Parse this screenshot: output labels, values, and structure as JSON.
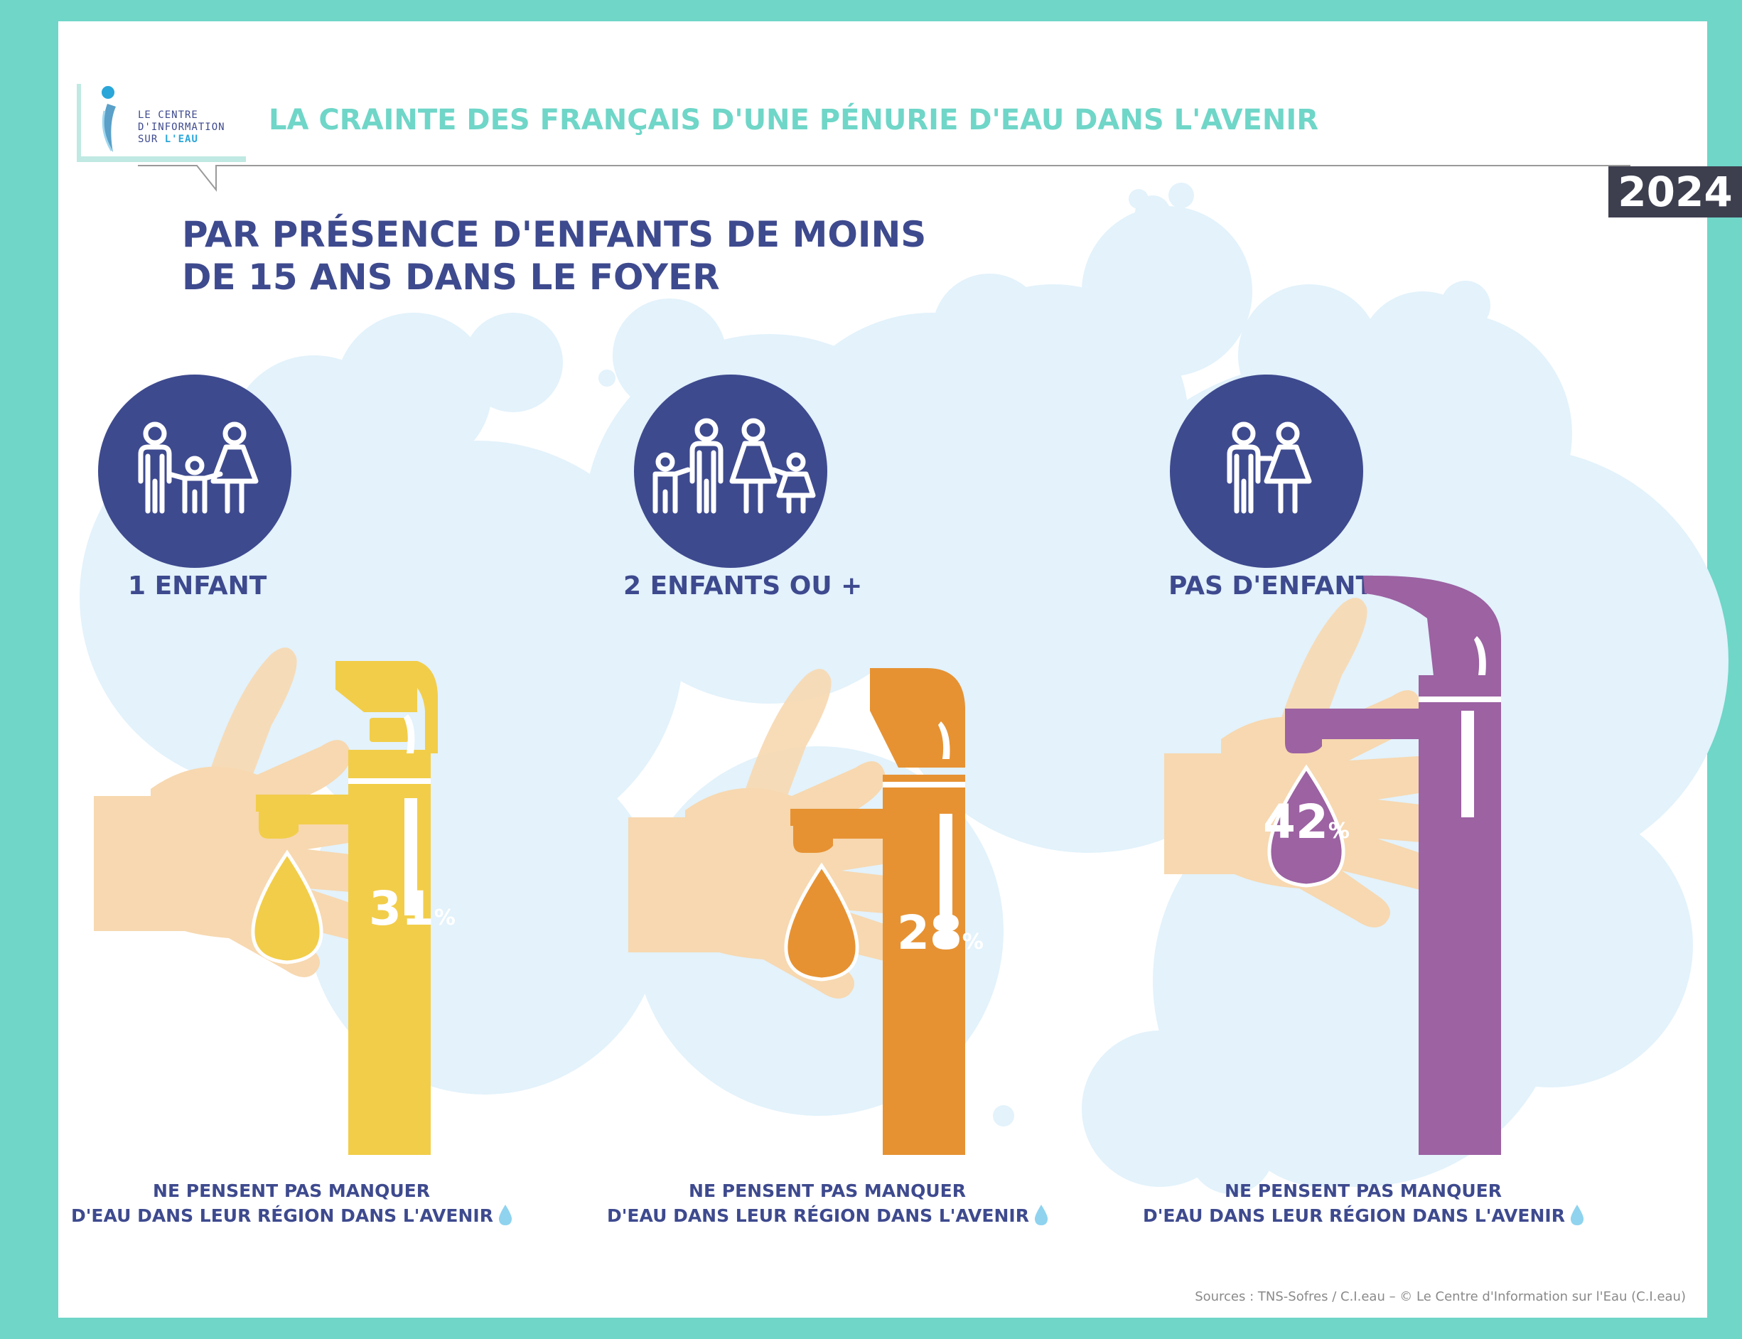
{
  "header": {
    "logo_lines": [
      "LE CENTRE",
      "D'INFORMATION",
      "SUR"
    ],
    "logo_accent": "L'EAU",
    "title": "LA CRAINTE DES FRANÇAIS D'UNE PÉNURIE D'EAU DANS L'AVENIR",
    "year": "2024"
  },
  "subtitle": {
    "line1": "PAR PRÉSENCE D'ENFANTS DE MOINS",
    "line2": "DE 15 ANS DANS LE FOYER"
  },
  "groups": [
    {
      "label": "1 ENFANT",
      "icon": "family-one-child-icon",
      "value": "31",
      "unit": "%",
      "color": "#f2cd49"
    },
    {
      "label": "2 ENFANTS OU +",
      "icon": "family-two-children-icon",
      "value": "28",
      "unit": "%",
      "color": "#e69233"
    },
    {
      "label": "PAS D'ENFANT",
      "icon": "couple-icon",
      "value": "42",
      "unit": "%",
      "color": "#9c62a2"
    }
  ],
  "caption": {
    "line1": "NE PENSENT PAS MANQUER",
    "line2": "D'EAU DANS LEUR RÉGION DANS L'AVENIR"
  },
  "sources": "Sources : TNS-Sofres / C.I.eau – © Le Centre d'Information sur l'Eau (C.I.eau)",
  "colors": {
    "accent": "#6fd6c8",
    "navy": "#3e4a8e",
    "bubble": "#e3f2fb",
    "skin": "#f7d8b0"
  }
}
